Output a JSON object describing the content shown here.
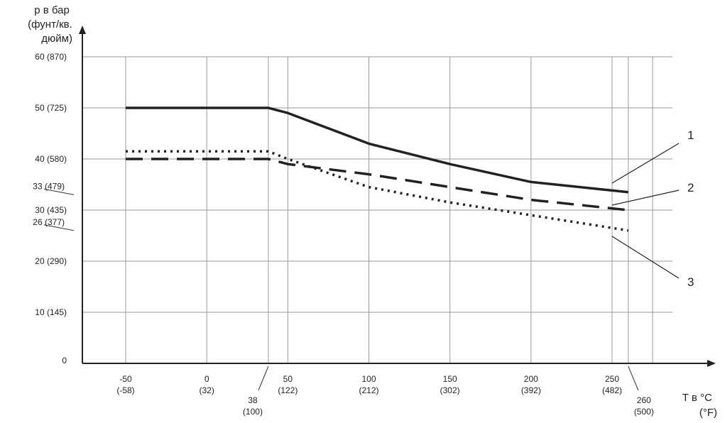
{
  "chart_data": {
    "type": "line",
    "ylabel_lines": [
      "p в бар",
      "(фунт/кв.",
      "дюйм)"
    ],
    "xlabel_lines": [
      "T в °C",
      "(°F)"
    ],
    "xlim": [
      -70,
      275
    ],
    "ylim": [
      0,
      60
    ],
    "grid": true,
    "y_ticks": [
      {
        "value": 0,
        "label": "0",
        "grid": false,
        "guide": false
      },
      {
        "value": 10,
        "label": "10 (145)",
        "grid": true,
        "guide": false
      },
      {
        "value": 20,
        "label": "20 (290)",
        "grid": true,
        "guide": false
      },
      {
        "value": 26,
        "label": "26 (377)",
        "grid": false,
        "guide": true
      },
      {
        "value": 30,
        "label": "30 (435)",
        "grid": true,
        "guide": false
      },
      {
        "value": 33,
        "label": "33 (479)",
        "grid": false,
        "guide": true
      },
      {
        "value": 40,
        "label": "40 (580)",
        "grid": true,
        "guide": false
      },
      {
        "value": 50,
        "label": "50 (725)",
        "grid": true,
        "guide": false
      },
      {
        "value": 60,
        "label": "60 (870)",
        "grid": true,
        "guide": false
      }
    ],
    "x_ticks": [
      {
        "value": -50,
        "c": "-50",
        "f": "(-58)",
        "leader": false
      },
      {
        "value": 0,
        "c": "0",
        "f": "(32)",
        "leader": false
      },
      {
        "value": 38,
        "c": "38",
        "f": "(100)",
        "leader": true
      },
      {
        "value": 50,
        "c": "50",
        "f": "(122)",
        "leader": false
      },
      {
        "value": 100,
        "c": "100",
        "f": "(212)",
        "leader": false
      },
      {
        "value": 150,
        "c": "150",
        "f": "(302)",
        "leader": false
      },
      {
        "value": 200,
        "c": "200",
        "f": "(392)",
        "leader": false
      },
      {
        "value": 250,
        "c": "250",
        "f": "(482)",
        "leader": false
      },
      {
        "value": 260,
        "c": "260",
        "f": "(500)",
        "leader": true
      }
    ],
    "x_grid": [
      -50,
      0,
      38,
      50,
      100,
      150,
      200,
      250,
      260,
      275
    ],
    "series": [
      {
        "label": "1",
        "style": "solid",
        "x": [
          -50,
          38,
          50,
          100,
          150,
          200,
          260
        ],
        "y": [
          50,
          50,
          49,
          43,
          39,
          35.5,
          33.5
        ]
      },
      {
        "label": "2",
        "style": "dashed",
        "x": [
          -50,
          38,
          50,
          100,
          150,
          200,
          260
        ],
        "y": [
          40,
          40,
          39,
          37,
          34.5,
          32,
          30
        ]
      },
      {
        "label": "3",
        "style": "dotted",
        "x": [
          -50,
          38,
          50,
          100,
          150,
          200,
          260
        ],
        "y": [
          41.5,
          41.5,
          40,
          34.5,
          31.5,
          29,
          26
        ]
      }
    ]
  }
}
